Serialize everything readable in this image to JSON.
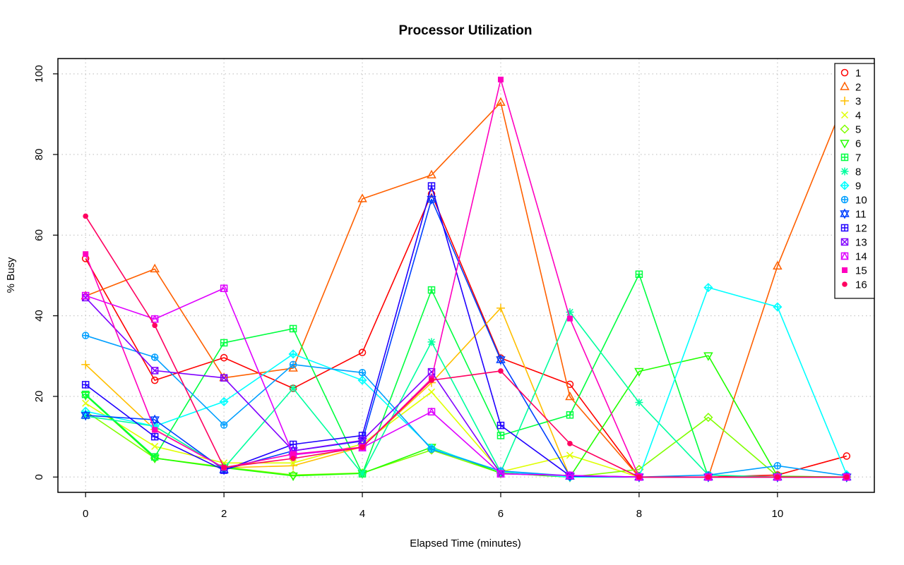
{
  "chart_data": {
    "type": "line",
    "title": "Processor Utilization",
    "xlabel": "Elapsed Time (minutes)",
    "ylabel": "% Busy",
    "xlim": [
      -0.4,
      11.4
    ],
    "ylim": [
      -3.8,
      103.8
    ],
    "xticks": [
      0,
      2,
      4,
      6,
      8,
      10
    ],
    "yticks": [
      0,
      20,
      40,
      60,
      80,
      100
    ],
    "grid": true,
    "legend_position": "top-right",
    "x": [
      0,
      1,
      2,
      3,
      4,
      5,
      6,
      7,
      8,
      9,
      10,
      11
    ],
    "series": [
      {
        "name": "1",
        "color": "#ff0000",
        "marker": "circle",
        "values": [
          54.2,
          24,
          29.6,
          22,
          30.9,
          70.2,
          29.5,
          23,
          0,
          0,
          0.5,
          5.2
        ]
      },
      {
        "name": "2",
        "color": "#ff6000",
        "marker": "triangle",
        "values": [
          44.9,
          51.6,
          24.6,
          27,
          69,
          74.9,
          92.9,
          19.9,
          0,
          0,
          52.3,
          94.5
        ]
      },
      {
        "name": "3",
        "color": "#ffbf00",
        "marker": "plus",
        "values": [
          27.9,
          11.8,
          2.3,
          2.8,
          7.5,
          23.4,
          41.9,
          0,
          0,
          0,
          0,
          0
        ]
      },
      {
        "name": "4",
        "color": "#dfff00",
        "marker": "cross",
        "values": [
          18.3,
          7.6,
          3.5,
          3.5,
          8.2,
          21.1,
          1.3,
          5.4,
          0,
          0,
          0,
          0
        ]
      },
      {
        "name": "5",
        "color": "#80ff00",
        "marker": "diamond",
        "values": [
          16.3,
          4.7,
          2.5,
          0.5,
          1,
          6.7,
          1,
          0,
          1.9,
          14.8,
          0.2,
          0
        ]
      },
      {
        "name": "6",
        "color": "#20ff00",
        "marker": "triangle-down",
        "values": [
          20.3,
          4.7,
          2.3,
          0.3,
          0.9,
          7.4,
          1,
          0,
          26.2,
          30.1,
          0.2,
          0
        ]
      },
      {
        "name": "7",
        "color": "#00ff40",
        "marker": "square-plus",
        "values": [
          20.5,
          5,
          33.3,
          36.8,
          0.8,
          46.4,
          10.3,
          15.4,
          50.3,
          0,
          0,
          0
        ]
      },
      {
        "name": "8",
        "color": "#00ff9f",
        "marker": "asterisk",
        "values": [
          15.1,
          12.6,
          2.2,
          22,
          0.8,
          33.5,
          1.2,
          40.9,
          18.5,
          0.5,
          0,
          0
        ]
      },
      {
        "name": "9",
        "color": "#00ffff",
        "marker": "diamond-plus",
        "values": [
          16.3,
          12.6,
          18.7,
          30.5,
          24,
          7.2,
          1.4,
          0,
          0,
          47,
          42.2,
          0.6
        ]
      },
      {
        "name": "10",
        "color": "#009fff",
        "marker": "circle-plus",
        "values": [
          35.1,
          29.7,
          12.9,
          27.9,
          25.9,
          6.9,
          1.5,
          0.3,
          0,
          0.5,
          2.8,
          0.3
        ]
      },
      {
        "name": "11",
        "color": "#0040ff",
        "marker": "star-of-david",
        "values": [
          15.3,
          14.2,
          1.8,
          6.5,
          8.9,
          68.9,
          29.1,
          0.2,
          0,
          0,
          0,
          0
        ]
      },
      {
        "name": "12",
        "color": "#2000ff",
        "marker": "square-plus",
        "values": [
          22.9,
          10,
          1.7,
          8.1,
          10.3,
          72.2,
          12.8,
          0.3,
          0,
          0,
          0,
          0
        ]
      },
      {
        "name": "13",
        "color": "#8000ff",
        "marker": "square-cross",
        "values": [
          44.5,
          26.4,
          24.6,
          6.5,
          9.1,
          26.1,
          0.8,
          0.4,
          0,
          0,
          0,
          0
        ]
      },
      {
        "name": "14",
        "color": "#df00ff",
        "marker": "square-triangle",
        "values": [
          45,
          39.2,
          46.8,
          5.5,
          7.3,
          16.2,
          0.8,
          0.4,
          0,
          0,
          0,
          0
        ]
      },
      {
        "name": "15",
        "color": "#ff00bf",
        "marker": "filled-square",
        "values": [
          55.3,
          11.7,
          2.3,
          5.7,
          7.4,
          24.4,
          98.6,
          39.3,
          0,
          0,
          0,
          0
        ]
      },
      {
        "name": "16",
        "color": "#ff0060",
        "marker": "filled-circle",
        "values": [
          64.7,
          37.6,
          2.4,
          4.6,
          7.4,
          24,
          26.3,
          8.3,
          0,
          0,
          0,
          0
        ]
      }
    ]
  }
}
